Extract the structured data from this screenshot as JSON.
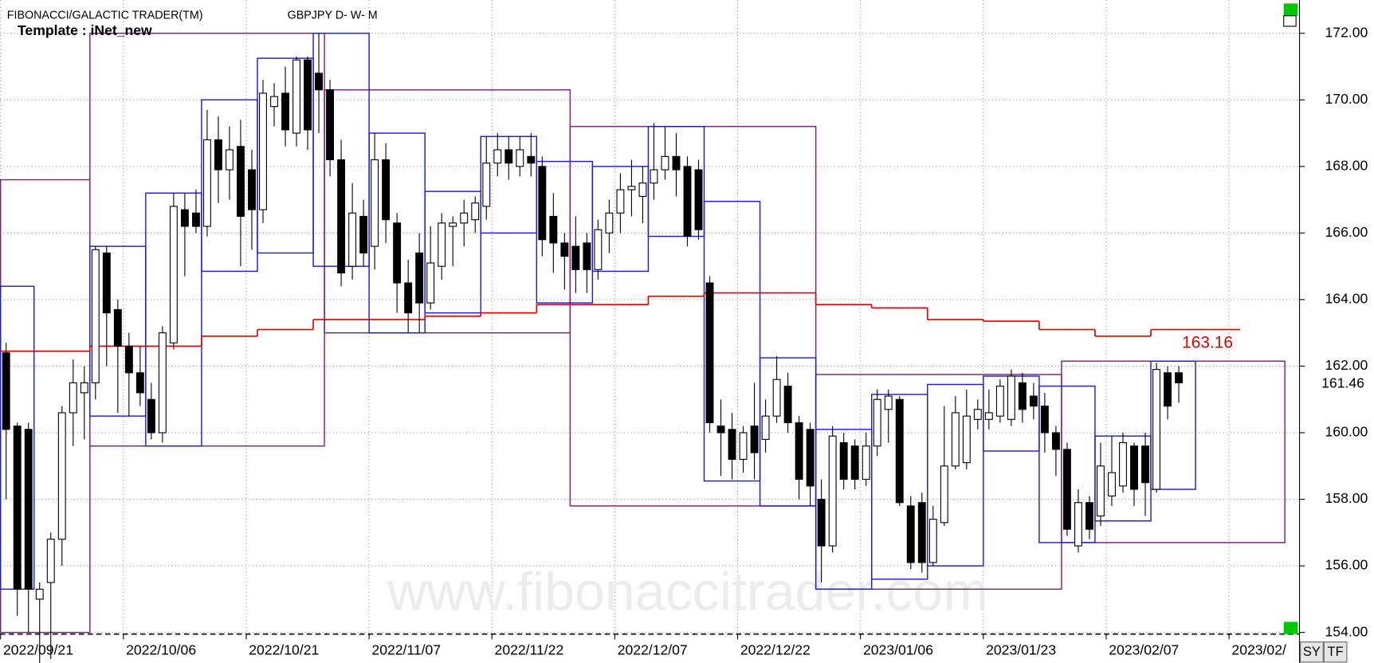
{
  "header": {
    "platform": "FIBONACCI/GALACTIC TRADER(TM)",
    "symbol": "GBPJPY D- W- M",
    "template": "Template : iNet_new"
  },
  "watermark": "www.fibonaccitrader.com",
  "buttons": [
    "SY",
    "TF"
  ],
  "chart_data": {
    "type": "candlestick",
    "grid": true,
    "up_color": "#ffffff",
    "down_color": "#000000",
    "ylim": [
      153.95,
      173
    ],
    "yticks": [
      {
        "value": 154,
        "label": "154.00"
      },
      {
        "value": 156,
        "label": "156.00"
      },
      {
        "value": 158,
        "label": "158.00"
      },
      {
        "value": 160,
        "label": "160.00"
      },
      {
        "value": 162,
        "label": "162.00"
      },
      {
        "value": 164,
        "label": "164.00"
      },
      {
        "value": 166,
        "label": "166.00"
      },
      {
        "value": 168,
        "label": "168.00"
      },
      {
        "value": 170,
        "label": "170.00"
      },
      {
        "value": 172,
        "label": "172.00"
      }
    ],
    "categories": [
      "2022/09/21",
      null,
      null,
      null,
      null,
      null,
      null,
      null,
      null,
      null,
      null,
      "2022/10/06",
      null,
      null,
      null,
      null,
      null,
      null,
      null,
      null,
      null,
      null,
      "2022/10/21",
      null,
      null,
      null,
      null,
      null,
      null,
      null,
      null,
      null,
      null,
      "2022/11/07",
      null,
      null,
      null,
      null,
      null,
      null,
      null,
      null,
      null,
      null,
      "2022/11/22",
      null,
      null,
      null,
      null,
      null,
      null,
      null,
      null,
      null,
      null,
      "2022/12/07",
      null,
      null,
      null,
      null,
      null,
      null,
      null,
      null,
      null,
      null,
      "2022/12/22",
      null,
      null,
      null,
      null,
      null,
      null,
      null,
      null,
      null,
      null,
      "2023/01/06",
      null,
      null,
      null,
      null,
      null,
      null,
      null,
      null,
      null,
      null,
      "2023/01/23",
      null,
      null,
      null,
      null,
      null,
      null,
      null,
      null,
      null,
      null,
      "2023/02/07",
      null,
      null,
      null,
      null,
      null,
      null,
      null,
      null,
      null,
      null,
      "2023/02/"
    ],
    "open": [
      162.4,
      160.2,
      160.1,
      155.0,
      155.5,
      156.8,
      160.6,
      161.2,
      161.5,
      165.4,
      163.7,
      162.6,
      161.8,
      161.0,
      160.0,
      162.7,
      166.7,
      166.6,
      166.2,
      168.8,
      167.9,
      168.6,
      167.9,
      166.7,
      169.8,
      170.2,
      169.0,
      171.2,
      170.8,
      170.3,
      168.2,
      165.0,
      166.5,
      165.6,
      168.2,
      166.3,
      164.5,
      165.4,
      163.9,
      165.0,
      166.2,
      166.3,
      166.4,
      166.8,
      168.1,
      168.5,
      168.0,
      168.3,
      168.0,
      166.5,
      165.7,
      165.6,
      165.7,
      164.9,
      166.0,
      166.6,
      167.3,
      167.1,
      167.5,
      167.9,
      168.3,
      168.0,
      167.9,
      164.5,
      160.2,
      160.1,
      159.2,
      160.2,
      159.8,
      160.5,
      161.4,
      160.3,
      160.1,
      158.0,
      156.6,
      159.7,
      159.6,
      158.6,
      159.6,
      160.7,
      161.0,
      157.8,
      157.9,
      156.1,
      157.3,
      159.0,
      159.1,
      160.4,
      160.4,
      160.5,
      160.4,
      161.5,
      161.1,
      160.8,
      160.0,
      159.5,
      156.6,
      157.9,
      157.5,
      158.1,
      158.4,
      159.6,
      159.6,
      158.3,
      161.8,
      161.8,
      null,
      null,
      null,
      null,
      null
    ],
    "high": [
      162.7,
      160.3,
      160.3,
      155.5,
      157.0,
      160.8,
      162.2,
      162.0,
      165.6,
      165.6,
      164.0,
      163.0,
      162.6,
      161.5,
      163.2,
      167.2,
      167.2,
      167.3,
      169.7,
      169.5,
      169.2,
      169.4,
      168.5,
      170.6,
      170.5,
      171.0,
      171.3,
      171.3,
      172.0,
      170.6,
      168.8,
      167.5,
      167.0,
      169.0,
      168.7,
      166.6,
      165.2,
      166.0,
      166.2,
      166.6,
      166.5,
      167.0,
      167.1,
      168.9,
      169.0,
      168.9,
      168.9,
      169.0,
      168.3,
      167.2,
      166.0,
      166.5,
      166.0,
      166.4,
      167.0,
      167.8,
      168.2,
      168.0,
      169.3,
      169.2,
      169.0,
      168.3,
      168.2,
      164.7,
      161.0,
      160.6,
      160.2,
      161.5,
      161.0,
      162.3,
      161.8,
      160.5,
      160.3,
      158.6,
      160.2,
      160.0,
      159.8,
      160.0,
      161.3,
      161.3,
      161.1,
      158.1,
      158.2,
      157.8,
      160.8,
      161.1,
      161.3,
      161.0,
      161.3,
      161.6,
      161.9,
      161.8,
      161.5,
      161.2,
      160.2,
      159.7,
      158.3,
      158.1,
      159.7,
      159.9,
      160.0,
      159.7,
      160.0,
      162.1,
      162.0,
      162.0,
      null,
      null,
      null,
      null,
      null
    ],
    "low": [
      158.0,
      154.5,
      154.0,
      153.0,
      153.2,
      156.0,
      159.6,
      159.8,
      161.0,
      162.0,
      160.6,
      160.5,
      160.8,
      159.8,
      159.7,
      162.5,
      164.7,
      166.0,
      165.9,
      166.9,
      167.0,
      165.0,
      165.5,
      166.3,
      169.2,
      168.6,
      168.6,
      168.5,
      169.0,
      167.7,
      164.4,
      164.6,
      165.0,
      164.9,
      165.7,
      163.6,
      163.0,
      163.0,
      163.7,
      164.6,
      165.0,
      165.6,
      166.0,
      166.4,
      167.7,
      167.6,
      167.7,
      167.7,
      165.3,
      164.8,
      164.3,
      164.2,
      164.2,
      164.6,
      165.4,
      166.0,
      166.5,
      166.3,
      167.0,
      167.6,
      167.1,
      165.6,
      165.8,
      160.0,
      158.7,
      158.6,
      158.8,
      158.6,
      159.4,
      160.3,
      160.0,
      158.0,
      157.8,
      155.5,
      156.4,
      158.3,
      158.3,
      158.4,
      159.3,
      159.7,
      157.8,
      155.9,
      155.8,
      156.0,
      157.2,
      158.9,
      158.9,
      160.1,
      160.1,
      160.3,
      160.2,
      160.3,
      160.4,
      159.4,
      158.7,
      156.9,
      156.4,
      156.8,
      157.2,
      157.8,
      158.2,
      157.8,
      157.5,
      158.2,
      160.4,
      160.9,
      null,
      null,
      null,
      null,
      null
    ],
    "close": [
      160.1,
      155.3,
      155.3,
      155.3,
      156.8,
      160.6,
      161.5,
      161.5,
      165.5,
      163.6,
      162.6,
      161.8,
      161.2,
      160.0,
      163.0,
      166.8,
      166.2,
      166.2,
      168.8,
      167.9,
      168.5,
      166.5,
      166.7,
      170.2,
      170.1,
      169.1,
      171.2,
      169.1,
      170.3,
      168.2,
      164.8,
      166.6,
      165.4,
      168.2,
      166.4,
      164.5,
      163.6,
      163.9,
      165.1,
      166.3,
      166.3,
      166.6,
      166.9,
      168.1,
      168.5,
      168.1,
      168.5,
      168.1,
      165.8,
      165.7,
      165.3,
      164.9,
      164.9,
      166.1,
      166.6,
      167.3,
      167.4,
      167.5,
      167.9,
      168.3,
      167.9,
      165.9,
      166.1,
      160.3,
      160.0,
      159.2,
      160.0,
      159.4,
      160.5,
      161.6,
      160.3,
      158.6,
      158.4,
      156.6,
      159.9,
      158.6,
      158.6,
      159.6,
      161.0,
      161.1,
      157.9,
      156.1,
      156.1,
      157.4,
      159.0,
      160.6,
      160.5,
      160.7,
      160.6,
      161.4,
      161.7,
      160.7,
      160.8,
      160.0,
      159.5,
      157.1,
      157.9,
      157.1,
      159.0,
      158.8,
      159.7,
      158.3,
      158.5,
      161.9,
      160.8,
      161.5,
      null,
      null,
      null,
      null,
      null
    ],
    "overlay_line": {
      "color": "#e00000",
      "values": [
        162.45,
        162.45,
        162.45,
        162.45,
        162.45,
        162.45,
        162.45,
        162.45,
        162.6,
        162.6,
        162.6,
        162.6,
        162.6,
        162.6,
        162.6,
        162.6,
        162.6,
        162.6,
        162.9,
        162.9,
        162.9,
        162.9,
        162.9,
        163.1,
        163.1,
        163.1,
        163.1,
        163.1,
        163.4,
        163.4,
        163.4,
        163.4,
        163.4,
        163.4,
        163.4,
        163.4,
        163.4,
        163.4,
        163.5,
        163.5,
        163.5,
        163.5,
        163.5,
        163.6,
        163.6,
        163.6,
        163.6,
        163.6,
        163.85,
        163.85,
        163.85,
        163.85,
        163.85,
        163.85,
        163.85,
        163.85,
        163.85,
        163.85,
        164.1,
        164.1,
        164.1,
        164.1,
        164.1,
        164.2,
        164.2,
        164.2,
        164.2,
        164.2,
        164.2,
        164.2,
        164.2,
        164.2,
        164.2,
        163.85,
        163.85,
        163.85,
        163.85,
        163.85,
        163.75,
        163.75,
        163.75,
        163.75,
        163.75,
        163.4,
        163.4,
        163.4,
        163.4,
        163.4,
        163.35,
        163.35,
        163.35,
        163.35,
        163.35,
        163.1,
        163.1,
        163.1,
        163.1,
        163.1,
        162.9,
        162.9,
        162.9,
        162.9,
        162.9,
        163.1,
        163.1,
        163.1,
        163.1,
        163.1,
        163.1,
        163.1,
        163.1
      ]
    },
    "monthly_boxes": {
      "color": "#7b1f7b",
      "boxes": [
        {
          "start": 0,
          "end": 7,
          "low": 154.0,
          "high": 167.6
        },
        {
          "start": 8,
          "end": 28,
          "low": 159.6,
          "high": 172.0
        },
        {
          "start": 29,
          "end": 50,
          "low": 163.0,
          "high": 170.3
        },
        {
          "start": 51,
          "end": 72,
          "low": 157.8,
          "high": 169.2
        },
        {
          "start": 73,
          "end": 94,
          "low": 155.3,
          "high": 161.75
        },
        {
          "start": 95,
          "end": 114,
          "low": 156.7,
          "high": 162.15
        }
      ]
    },
    "weekly_boxes": {
      "color": "#1c1cdc",
      "boxes": [
        {
          "start": 0,
          "end": 2,
          "low": 155.3,
          "high": 164.4
        },
        {
          "start": 8,
          "end": 12,
          "low": 160.5,
          "high": 165.6
        },
        {
          "start": 13,
          "end": 17,
          "low": 159.6,
          "high": 167.2
        },
        {
          "start": 18,
          "end": 22,
          "low": 164.85,
          "high": 170.0
        },
        {
          "start": 23,
          "end": 27,
          "low": 165.4,
          "high": 171.25
        },
        {
          "start": 28,
          "end": 32,
          "low": 165.0,
          "high": 172.0
        },
        {
          "start": 33,
          "end": 37,
          "low": 163.0,
          "high": 169.0
        },
        {
          "start": 38,
          "end": 42,
          "low": 163.6,
          "high": 167.25
        },
        {
          "start": 43,
          "end": 47,
          "low": 166.0,
          "high": 168.9
        },
        {
          "start": 48,
          "end": 52,
          "low": 163.9,
          "high": 168.15
        },
        {
          "start": 53,
          "end": 57,
          "low": 164.85,
          "high": 168.0
        },
        {
          "start": 58,
          "end": 62,
          "low": 165.9,
          "high": 169.2
        },
        {
          "start": 63,
          "end": 67,
          "low": 158.55,
          "high": 166.95
        },
        {
          "start": 68,
          "end": 72,
          "low": 157.8,
          "high": 162.25
        },
        {
          "start": 73,
          "end": 77,
          "low": 155.3,
          "high": 160.1
        },
        {
          "start": 78,
          "end": 82,
          "low": 155.6,
          "high": 161.15
        },
        {
          "start": 83,
          "end": 87,
          "low": 156.0,
          "high": 161.45
        },
        {
          "start": 88,
          "end": 92,
          "low": 159.45,
          "high": 161.7
        },
        {
          "start": 93,
          "end": 97,
          "low": 156.7,
          "high": 161.4
        },
        {
          "start": 98,
          "end": 102,
          "low": 157.35,
          "high": 159.9
        },
        {
          "start": 103,
          "end": 106,
          "low": 158.3,
          "high": 162.15
        }
      ]
    },
    "price_labels": [
      {
        "value": 163.16,
        "color": "#e00000"
      },
      {
        "value": 161.46,
        "color": "#000000"
      }
    ]
  }
}
